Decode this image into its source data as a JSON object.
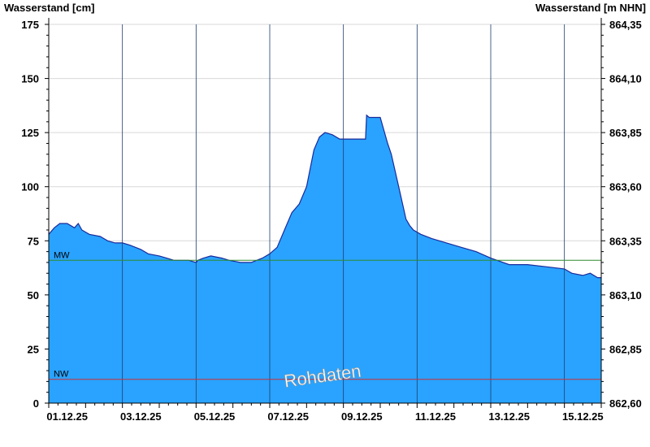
{
  "chart_data": {
    "type": "area",
    "ylabel_left": "Wasserstand [cm]",
    "ylabel_right": "Wasserstand [m NHN]",
    "ylim": [
      0,
      175
    ],
    "y_ticks": [
      0,
      25,
      50,
      75,
      100,
      125,
      150,
      175
    ],
    "y_right_ticks": [
      "862,60",
      "862,85",
      "863,10",
      "863,35",
      "863,60",
      "863,85",
      "864,10",
      "864,35"
    ],
    "x_range_days": [
      0,
      15
    ],
    "x_tick_labels": [
      "01.12.25",
      "03.12.25",
      "05.12.25",
      "07.12.25",
      "09.12.25",
      "11.12.25",
      "13.12.25",
      "15.12.25"
    ],
    "x_tick_days": [
      0,
      2,
      4,
      6,
      8,
      10,
      12,
      14
    ],
    "x_vertical_gridlines_days": [
      2,
      4,
      6,
      8,
      10,
      12,
      14
    ],
    "series": [
      {
        "x_days": [
          0,
          0.15,
          0.3,
          0.5,
          0.7,
          0.8,
          0.9,
          1.1,
          1.4,
          1.6,
          1.8,
          2.0,
          2.2,
          2.5,
          2.7,
          3.0,
          3.2,
          3.4,
          3.6,
          3.8,
          4.0,
          4.05,
          4.2,
          4.4,
          4.7,
          4.9,
          5.2,
          5.5,
          5.8,
          6.0,
          6.2,
          6.4,
          6.6,
          6.8,
          7.0,
          7.2,
          7.35,
          7.5,
          7.7,
          7.9,
          8.0,
          8.3,
          8.6,
          8.63,
          8.7,
          9.0,
          9.2,
          9.3,
          9.5,
          9.7,
          9.8,
          9.9,
          10.1,
          10.4,
          10.8,
          11.2,
          11.6,
          12.0,
          12.5,
          13.0,
          13.5,
          14.0,
          14.2,
          14.5,
          14.7,
          14.9,
          15.0
        ],
        "values": [
          78,
          81,
          83,
          83,
          81,
          83,
          80,
          78,
          77,
          75,
          74,
          74,
          73,
          71,
          69,
          68,
          67,
          66,
          66,
          66,
          65,
          66,
          67,
          68,
          67,
          66,
          65,
          65,
          67,
          69,
          72,
          80,
          88,
          92,
          100,
          117,
          123,
          125,
          124,
          122,
          122,
          122,
          122,
          133,
          132,
          132,
          120,
          115,
          100,
          85,
          82,
          80,
          78,
          76,
          74,
          72,
          70,
          67,
          64,
          64,
          63,
          62,
          60,
          59,
          60,
          58,
          58
        ]
      }
    ],
    "reference_lines": [
      {
        "label": "MW",
        "value": 66,
        "color": "#2e8b2e"
      },
      {
        "label": "NW",
        "value": 11,
        "color": "#cc3333"
      }
    ],
    "annotation": "Rohdaten",
    "fill_color": "#29a3ff",
    "line_color": "#1a2a9a",
    "grid": true
  }
}
